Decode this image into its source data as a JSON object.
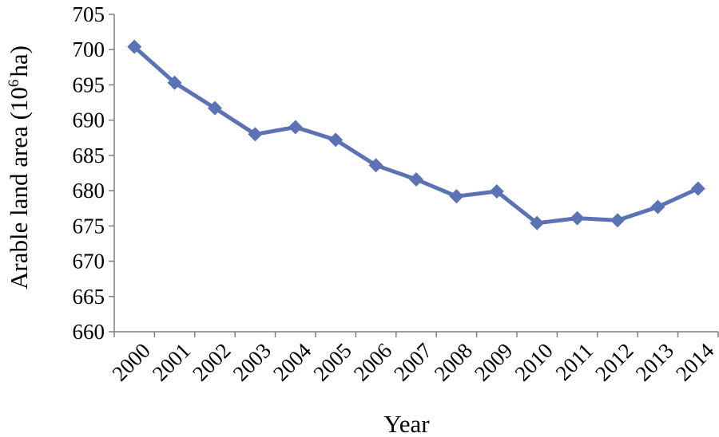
{
  "chart_data": {
    "type": "line",
    "xlabel": "Year",
    "ylabel_main": "Arable land area (10",
    "ylabel_sup": "6",
    "ylabel_end": "ha)",
    "ylim": [
      660,
      705
    ],
    "ytick_step": 5,
    "yticks": [
      "660",
      "665",
      "670",
      "675",
      "680",
      "685",
      "690",
      "695",
      "700",
      "705"
    ],
    "categories": [
      "2000",
      "2001",
      "2002",
      "2003",
      "2004",
      "2005",
      "2006",
      "2007",
      "2008",
      "2009",
      "2010",
      "2011",
      "2012",
      "2013",
      "2014"
    ],
    "series": [
      {
        "values": [
          700.4,
          695.3,
          691.7,
          688.0,
          689.0,
          687.2,
          683.6,
          681.6,
          679.2,
          679.9,
          675.4,
          676.1,
          675.8,
          677.7,
          680.3
        ],
        "color": "#5b72b4",
        "marker": "diamond"
      }
    ],
    "grid": false,
    "legend": "none"
  }
}
